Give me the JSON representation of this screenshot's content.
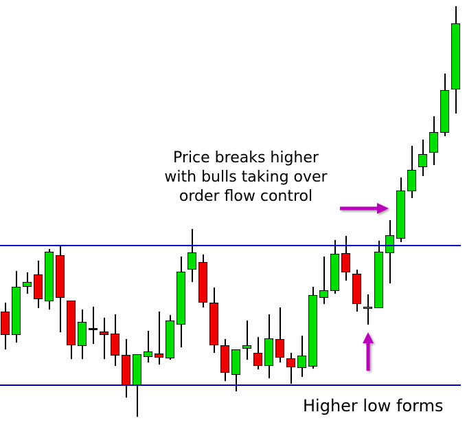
{
  "annotations": {
    "breakout": {
      "line1": "Price breaks higher",
      "line2": "with bulls taking over",
      "line3": "order flow control"
    },
    "higher_low": "Higher low forms"
  },
  "colors": {
    "background": "#FFFFFF",
    "bull": "#00E000",
    "bear": "#ED0000",
    "wick": "#000000",
    "level_line": "#0000C8",
    "arrow": "#BD00BD",
    "text": "#000000"
  },
  "chart_data": {
    "type": "candlestick",
    "title": "",
    "xlabel": "",
    "ylabel": "",
    "grid": false,
    "legend": false,
    "price_scale_note": "relative units: lower support line = 100, upper resistance line = 110",
    "ylim": [
      97,
      128
    ],
    "levels": {
      "resistance": 110,
      "support": 100
    },
    "candles": [
      [
        105.26,
        105.9,
        102.54,
        103.58,
        "down"
      ],
      [
        103.58,
        108.17,
        103.04,
        107.04,
        "up"
      ],
      [
        107.04,
        108.07,
        106.54,
        107.38,
        "up"
      ],
      [
        107.93,
        108.91,
        105.51,
        106.15,
        "down"
      ],
      [
        106.0,
        109.75,
        105.41,
        109.56,
        "up"
      ],
      [
        109.31,
        110.0,
        103.78,
        106.25,
        "down"
      ],
      [
        106.05,
        106.05,
        101.85,
        102.84,
        "down"
      ],
      [
        102.79,
        105.41,
        101.85,
        104.52,
        "up"
      ],
      [
        104.07,
        105.6,
        102.94,
        103.98,
        "doji"
      ],
      [
        103.83,
        104.81,
        101.85,
        103.58,
        "down"
      ],
      [
        103.68,
        105.06,
        101.36,
        102.1,
        "down"
      ],
      [
        102.15,
        103.28,
        99.09,
        99.98,
        "down"
      ],
      [
        99.98,
        102.2,
        97.7,
        102.2,
        "up"
      ],
      [
        102.0,
        103.88,
        101.6,
        102.4,
        "up"
      ],
      [
        102.25,
        105.26,
        101.46,
        101.95,
        "down"
      ],
      [
        101.9,
        105.01,
        101.8,
        104.62,
        "up"
      ],
      [
        104.32,
        109.21,
        102.69,
        108.12,
        "up"
      ],
      [
        108.27,
        111.19,
        107.38,
        109.51,
        "up"
      ],
      [
        108.81,
        109.36,
        105.56,
        105.9,
        "down"
      ],
      [
        105.9,
        106.99,
        102.3,
        102.84,
        "down"
      ],
      [
        102.84,
        103.28,
        100.27,
        100.86,
        "down"
      ],
      [
        100.72,
        102.54,
        99.53,
        102.54,
        "up"
      ],
      [
        102.59,
        104.62,
        101.8,
        102.84,
        "up"
      ],
      [
        102.3,
        103.43,
        101.11,
        101.36,
        "down"
      ],
      [
        101.36,
        105.06,
        100.47,
        103.33,
        "up"
      ],
      [
        103.28,
        105.56,
        101.6,
        101.95,
        "down"
      ],
      [
        101.9,
        102.3,
        100.07,
        101.26,
        "down"
      ],
      [
        101.21,
        103.53,
        100.57,
        102.1,
        "up"
      ],
      [
        101.31,
        107.04,
        101.16,
        106.44,
        "up"
      ],
      [
        106.25,
        109.21,
        105.8,
        106.79,
        "up"
      ],
      [
        106.74,
        110.4,
        106.54,
        109.41,
        "up"
      ],
      [
        109.46,
        110.69,
        107.48,
        108.07,
        "down"
      ],
      [
        107.98,
        108.27,
        105.26,
        105.8,
        "down"
      ],
      [
        105.51,
        106.49,
        104.32,
        105.6,
        "up"
      ],
      [
        105.51,
        110.35,
        105.51,
        109.56,
        "up"
      ],
      [
        109.46,
        111.83,
        107.28,
        110.74,
        "up"
      ],
      [
        110.49,
        114.89,
        110.25,
        113.95,
        "up"
      ],
      [
        113.9,
        117.16,
        113.41,
        115.43,
        "up"
      ],
      [
        115.63,
        117.6,
        114.99,
        116.57,
        "up"
      ],
      [
        116.67,
        119.28,
        115.78,
        118.15,
        "up"
      ],
      [
        118.1,
        122.35,
        117.85,
        121.16,
        "up"
      ],
      [
        121.21,
        127.19,
        119.48,
        125.95,
        "up"
      ]
    ]
  }
}
